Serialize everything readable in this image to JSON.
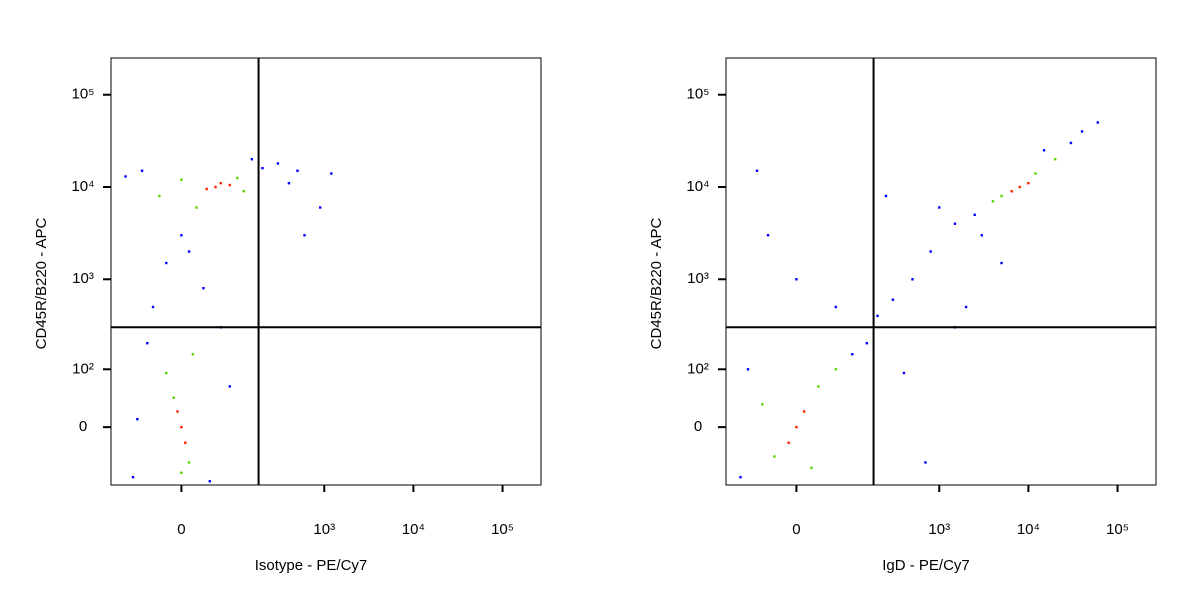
{
  "chart_data": [
    {
      "type": "scatter",
      "xlabel": "Isotype - PE/Cy7",
      "ylabel": "CD45R/B220 - APC",
      "xscale": "biexponential",
      "yscale": "biexponential",
      "xlim": [
        -150,
        270000
      ],
      "ylim": [
        -100,
        250000
      ],
      "xticks": [
        0,
        {
          "value": 1000,
          "label": "10³"
        },
        {
          "value": 10000,
          "label": "10⁴"
        },
        {
          "value": 100000,
          "label": "10⁵"
        }
      ],
      "yticks": [
        0,
        {
          "value": 100,
          "label": "10²"
        },
        {
          "value": 1000,
          "label": "10³"
        },
        {
          "value": 10000,
          "label": "10⁴"
        },
        {
          "value": 100000,
          "label": "10⁵"
        }
      ],
      "quadrant": {
        "x": 180,
        "y": 300
      },
      "series": [
        {
          "color": "#0000ff",
          "x": [
            -100,
            -60,
            200,
            300,
            500,
            150,
            0,
            -20,
            30,
            -40,
            60,
            10,
            -80,
            40,
            -50,
            80,
            -70,
            400,
            1200,
            900,
            600
          ],
          "y": [
            13000,
            15000,
            16000,
            18000,
            15000,
            20000,
            3000,
            1500,
            800,
            500,
            300,
            2000,
            -80,
            -90,
            200,
            60,
            10,
            11000,
            14000,
            6000,
            3000
          ]
        },
        {
          "color": "#55d400",
          "x": [
            0,
            100,
            -30,
            120,
            20,
            -10,
            10,
            -20,
            15,
            0
          ],
          "y": [
            12000,
            12500,
            8000,
            9000,
            6000,
            40,
            -50,
            90,
            150,
            -70
          ]
        },
        {
          "color": "#ff2000",
          "x": [
            50,
            60,
            35,
            80,
            0,
            5,
            -5
          ],
          "y": [
            10000,
            11000,
            9500,
            10500,
            0,
            -20,
            20
          ]
        }
      ]
    },
    {
      "type": "scatter",
      "xlabel": "IgD - PE/Cy7",
      "ylabel": "CD45R/B220 - APC",
      "xscale": "biexponential",
      "yscale": "biexponential",
      "xlim": [
        -150,
        270000
      ],
      "ylim": [
        -100,
        250000
      ],
      "xticks": [
        0,
        {
          "value": 1000,
          "label": "10³"
        },
        {
          "value": 10000,
          "label": "10⁴"
        },
        {
          "value": 100000,
          "label": "10⁵"
        }
      ],
      "yticks": [
        0,
        {
          "value": 100,
          "label": "10²"
        },
        {
          "value": 1000,
          "label": "10³"
        },
        {
          "value": 10000,
          "label": "10⁴"
        },
        {
          "value": 100000,
          "label": "10⁵"
        }
      ],
      "quadrant": {
        "x": 180,
        "y": 300
      },
      "series": [
        {
          "color": "#0000ff",
          "x": [
            -100,
            150,
            200,
            100,
            -80,
            300,
            500,
            800,
            1500,
            2500,
            3000,
            40000,
            60000,
            1000,
            -40,
            0,
            60,
            250,
            -60,
            30000,
            15000,
            2000,
            5000,
            700,
            400,
            1500
          ],
          "y": [
            -80,
            200,
            400,
            150,
            100,
            600,
            1000,
            2000,
            4000,
            5000,
            3000,
            40000,
            50000,
            6000,
            3000,
            1000,
            500,
            8000,
            15000,
            30000,
            25000,
            500,
            1500,
            -50,
            90,
            300
          ]
        },
        {
          "color": "#55d400",
          "x": [
            30,
            -30,
            60,
            -50,
            20,
            12000,
            5000,
            20000,
            4000
          ],
          "y": [
            60,
            -40,
            100,
            30,
            -60,
            14000,
            8000,
            20000,
            7000
          ]
        },
        {
          "color": "#ff2000",
          "x": [
            0,
            10,
            -10,
            8000,
            6500,
            10000
          ],
          "y": [
            0,
            20,
            -20,
            10000,
            9000,
            11000
          ]
        }
      ]
    }
  ]
}
